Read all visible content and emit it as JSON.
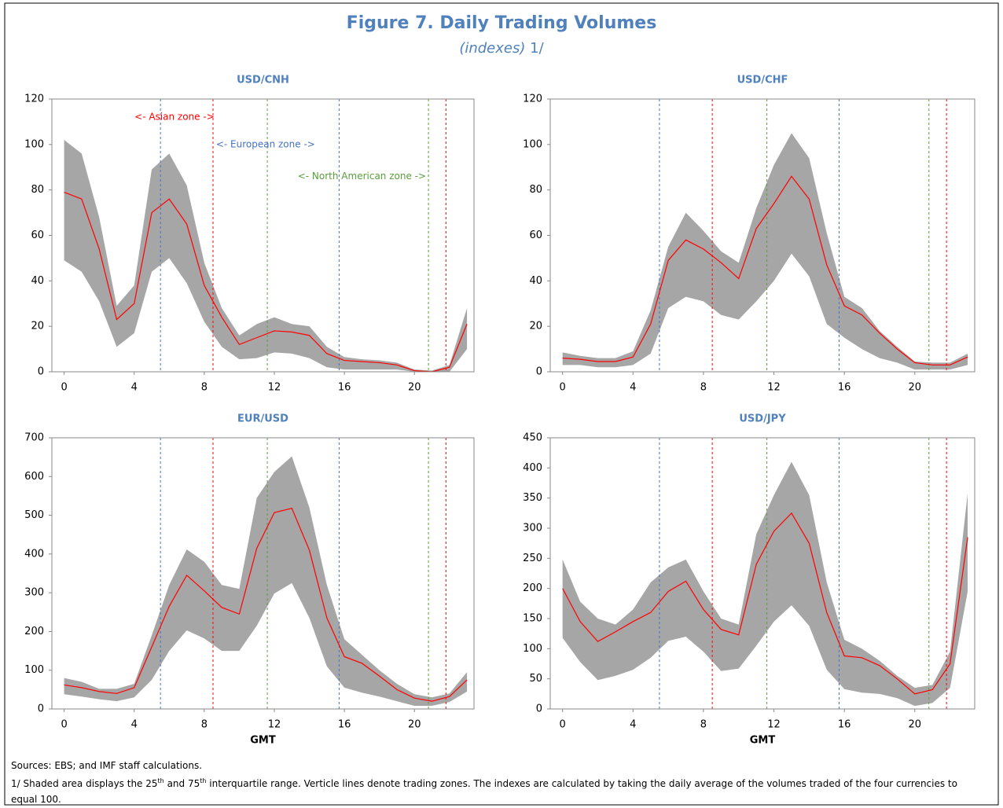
{
  "title": "Figure 7. Daily Trading Volumes",
  "subtitle": "(indexes)",
  "subtitle_note": "1/",
  "chart_data": [
    {
      "type": "line",
      "title": "USD/CNH",
      "x": [
        0,
        1,
        2,
        3,
        4,
        5,
        6,
        7,
        8,
        9,
        10,
        11,
        12,
        13,
        14,
        15,
        16,
        17,
        18,
        19,
        20,
        21,
        22,
        23
      ],
      "xlim": [
        -0.7,
        23.4
      ],
      "xticks": [
        0,
        4,
        8,
        12,
        16,
        20
      ],
      "ylim": [
        0,
        120
      ],
      "yticks": [
        0,
        20,
        40,
        60,
        80,
        100,
        120
      ],
      "series": [
        {
          "color": "#ff0000",
          "values": [
            79,
            76,
            54,
            23,
            30,
            70,
            76,
            65,
            38,
            24,
            12,
            15,
            18,
            17.5,
            16,
            8,
            5,
            4.5,
            4,
            3,
            0.5,
            0,
            2,
            21
          ]
        }
      ],
      "band": {
        "color": "#a6a6a6",
        "low": [
          49,
          44,
          31,
          11,
          17,
          44,
          50,
          39,
          22,
          11,
          5.5,
          6,
          8.5,
          8,
          6,
          2,
          1,
          1,
          1,
          1,
          0,
          0,
          0,
          10
        ],
        "high": [
          102,
          96,
          68,
          29,
          38,
          89,
          96,
          82,
          48,
          28,
          16,
          21,
          24,
          21,
          20,
          11,
          6.5,
          5.5,
          5,
          4,
          1,
          0.5,
          3,
          28
        ]
      },
      "zone_lines": [
        {
          "x": 5.5,
          "color": "#4472c4"
        },
        {
          "x": 8.5,
          "color": "#ff0000"
        },
        {
          "x": 11.6,
          "color": "#5a9e3a"
        },
        {
          "x": 15.7,
          "color": "#4472c4"
        },
        {
          "x": 20.8,
          "color": "#5a9e3a"
        },
        {
          "x": 21.8,
          "color": "#ff0000"
        }
      ],
      "annotations": [
        {
          "text": "<- Asian zone ->",
          "color": "#ff0000"
        },
        {
          "text": "<- European zone ->",
          "color": "#4472c4"
        },
        {
          "text": "<- North American zone ->",
          "color": "#5a9e3a"
        }
      ]
    },
    {
      "type": "line",
      "title": "USD/CHF",
      "x": [
        0,
        1,
        2,
        3,
        4,
        5,
        6,
        7,
        8,
        9,
        10,
        11,
        12,
        13,
        14,
        15,
        16,
        17,
        18,
        19,
        20,
        21,
        22,
        23
      ],
      "xlim": [
        -0.7,
        23.4
      ],
      "xticks": [
        0,
        4,
        8,
        12,
        16,
        20
      ],
      "ylim": [
        0,
        120
      ],
      "yticks": [
        0,
        20,
        40,
        60,
        80,
        100,
        120
      ],
      "series": [
        {
          "color": "#ff0000",
          "values": [
            6,
            5.5,
            4.5,
            4.5,
            6.5,
            21,
            49,
            58,
            54,
            48,
            41,
            63,
            74,
            86,
            76,
            47,
            29,
            25,
            17,
            10,
            4,
            3,
            3,
            6.5
          ]
        }
      ],
      "band": {
        "color": "#a6a6a6",
        "low": [
          3,
          3,
          2,
          2,
          3,
          8,
          28,
          33,
          31,
          25,
          23,
          31,
          40,
          52,
          42,
          21,
          15,
          10,
          6,
          4,
          1,
          1,
          1,
          3
        ],
        "high": [
          8.5,
          7,
          6,
          6,
          9,
          27,
          55,
          70,
          62,
          53,
          48,
          72,
          91,
          105,
          94,
          61,
          33,
          28,
          18,
          11,
          4.5,
          4,
          4,
          8
        ]
      },
      "zone_lines": [
        {
          "x": 5.5,
          "color": "#4472c4"
        },
        {
          "x": 8.5,
          "color": "#ff0000"
        },
        {
          "x": 11.6,
          "color": "#5a9e3a"
        },
        {
          "x": 15.7,
          "color": "#4472c4"
        },
        {
          "x": 20.8,
          "color": "#5a9e3a"
        },
        {
          "x": 21.8,
          "color": "#ff0000"
        }
      ]
    },
    {
      "type": "line",
      "title": "EUR/USD",
      "xlabel": "GMT",
      "x": [
        0,
        1,
        2,
        3,
        4,
        5,
        6,
        7,
        8,
        9,
        10,
        11,
        12,
        13,
        14,
        15,
        16,
        17,
        18,
        19,
        20,
        21,
        22,
        23
      ],
      "xlim": [
        -0.7,
        23.4
      ],
      "xticks": [
        0,
        4,
        8,
        12,
        16,
        20
      ],
      "ylim": [
        0,
        700
      ],
      "yticks": [
        0,
        100,
        200,
        300,
        400,
        500,
        600,
        700
      ],
      "series": [
        {
          "color": "#ff0000",
          "values": [
            62,
            55,
            45,
            40,
            55,
            160,
            265,
            345,
            305,
            262,
            245,
            415,
            507,
            518,
            410,
            235,
            135,
            118,
            85,
            50,
            28,
            20,
            32,
            75
          ]
        }
      ],
      "band": {
        "color": "#a6a6a6",
        "low": [
          38,
          32,
          25,
          20,
          30,
          75,
          150,
          203,
          182,
          150,
          150,
          215,
          298,
          325,
          235,
          110,
          55,
          42,
          32,
          20,
          8,
          8,
          18,
          45
        ],
        "high": [
          80,
          70,
          52,
          52,
          65,
          190,
          320,
          412,
          380,
          320,
          310,
          545,
          612,
          652,
          520,
          320,
          180,
          140,
          100,
          65,
          38,
          30,
          40,
          95
        ]
      },
      "zone_lines": [
        {
          "x": 5.5,
          "color": "#4472c4"
        },
        {
          "x": 8.5,
          "color": "#ff0000"
        },
        {
          "x": 11.6,
          "color": "#5a9e3a"
        },
        {
          "x": 15.7,
          "color": "#4472c4"
        },
        {
          "x": 20.8,
          "color": "#5a9e3a"
        },
        {
          "x": 21.8,
          "color": "#ff0000"
        }
      ]
    },
    {
      "type": "line",
      "title": "USD/JPY",
      "xlabel": "GMT",
      "x": [
        0,
        1,
        2,
        3,
        4,
        5,
        6,
        7,
        8,
        9,
        10,
        11,
        12,
        13,
        14,
        15,
        16,
        17,
        18,
        19,
        20,
        21,
        22,
        23
      ],
      "xlim": [
        -0.7,
        23.4
      ],
      "xticks": [
        0,
        4,
        8,
        12,
        16,
        20
      ],
      "ylim": [
        0,
        450
      ],
      "yticks": [
        0,
        50,
        100,
        150,
        200,
        250,
        300,
        350,
        400,
        450
      ],
      "series": [
        {
          "color": "#ff0000",
          "values": [
            200,
            145,
            112,
            128,
            145,
            160,
            195,
            212,
            165,
            132,
            123,
            240,
            295,
            325,
            275,
            160,
            88,
            85,
            72,
            50,
            25,
            32,
            75,
            285
          ]
        }
      ],
      "band": {
        "color": "#a6a6a6",
        "low": [
          118,
          78,
          48,
          55,
          65,
          85,
          113,
          120,
          95,
          63,
          67,
          105,
          145,
          172,
          138,
          65,
          33,
          27,
          25,
          18,
          5,
          10,
          35,
          195
        ],
        "high": [
          248,
          178,
          150,
          140,
          165,
          210,
          235,
          248,
          195,
          150,
          140,
          290,
          355,
          410,
          355,
          210,
          115,
          100,
          80,
          55,
          35,
          40,
          95,
          358
        ]
      },
      "zone_lines": [
        {
          "x": 5.5,
          "color": "#4472c4"
        },
        {
          "x": 8.5,
          "color": "#ff0000"
        },
        {
          "x": 11.6,
          "color": "#5a9e3a"
        },
        {
          "x": 15.7,
          "color": "#4472c4"
        },
        {
          "x": 20.8,
          "color": "#5a9e3a"
        },
        {
          "x": 21.8,
          "color": "#ff0000"
        }
      ]
    }
  ],
  "sources": "Sources: EBS; and IMF staff calculations.",
  "note": [
    "1/ Shaded area displays the 25",
    "th",
    " and 75",
    "th",
    " interquartile range. Verticle lines denote trading zones. The indexes are calculated by taking the daily average of the volumes traded of the four currencies to equal 100."
  ]
}
